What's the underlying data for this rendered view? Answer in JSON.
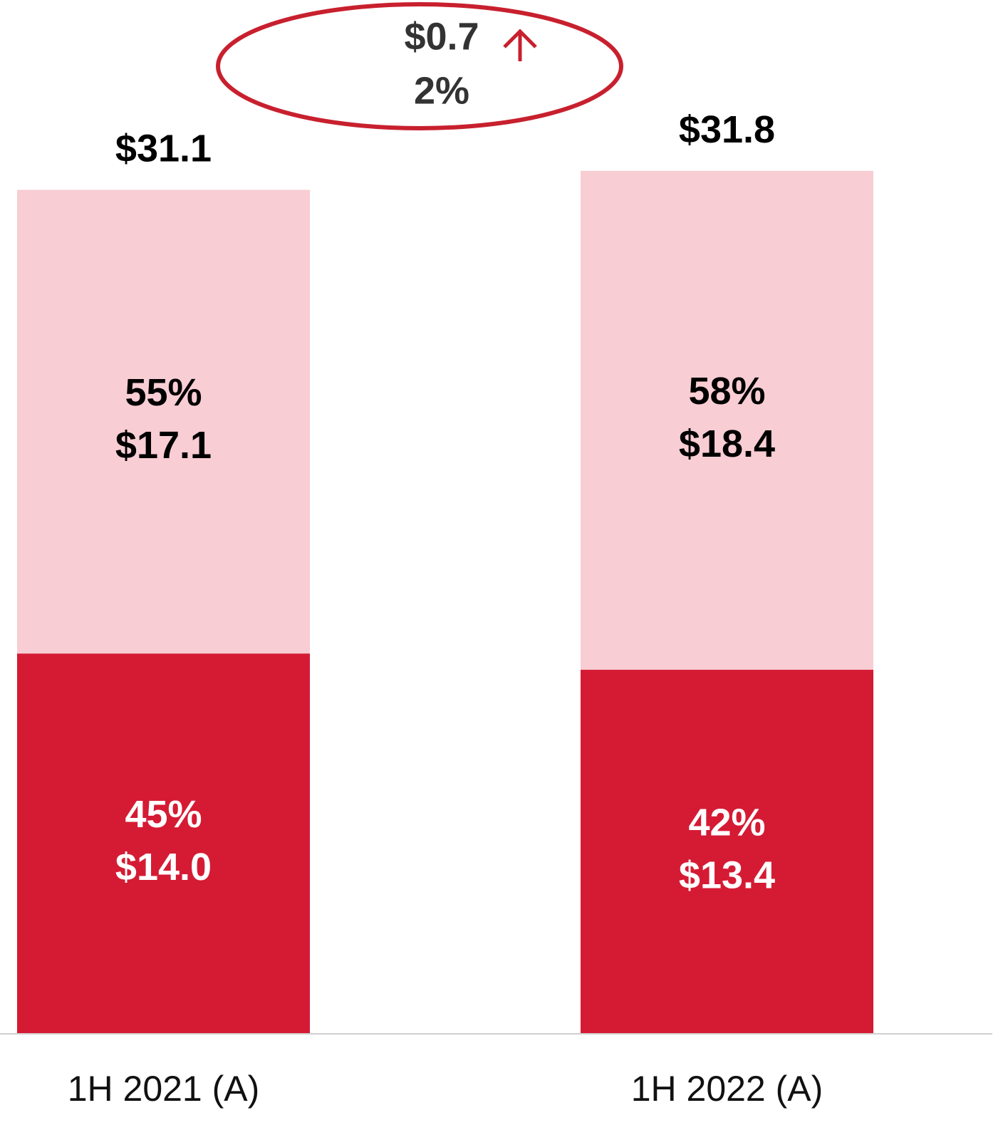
{
  "chart_data": {
    "type": "stacked_bar",
    "categories": [
      "1H 2021 (A)",
      "1H 2022 (A)"
    ],
    "series": [
      {
        "color": "#d51b34",
        "label_color": "#ffffff",
        "values": [
          14.0,
          13.4
        ],
        "value_labels": [
          "$14.0",
          "$13.4"
        ],
        "shares": [
          45,
          42
        ],
        "share_labels": [
          "45%",
          "42%"
        ]
      },
      {
        "color": "#f8cdd4",
        "label_color": "#000000",
        "values": [
          17.1,
          18.4
        ],
        "value_labels": [
          "$17.1",
          "$18.4"
        ],
        "shares": [
          55,
          58
        ],
        "share_labels": [
          "55%",
          "58%"
        ]
      }
    ],
    "totals": [
      31.1,
      31.8
    ],
    "total_labels": [
      "$31.1",
      "$31.8"
    ],
    "ylim": [
      0,
      38.1
    ],
    "annotation": {
      "change": "$0.7",
      "percent": "2%",
      "color": "#c8202e"
    }
  }
}
